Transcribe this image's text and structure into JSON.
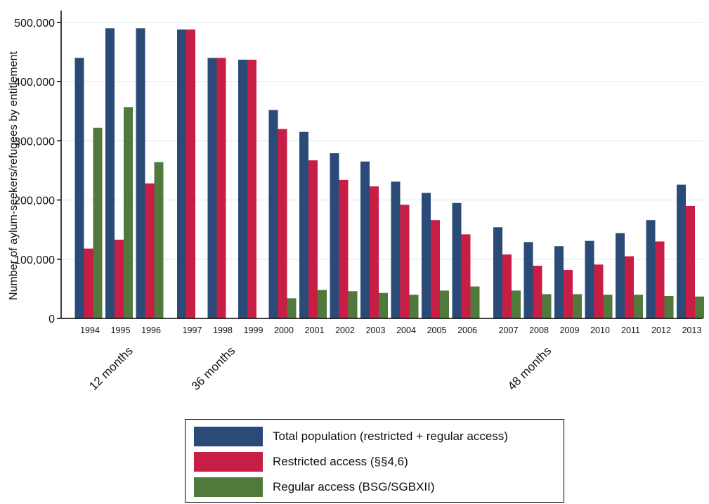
{
  "chart_data": {
    "type": "bar",
    "title": "",
    "xlabel": "",
    "ylabel": "Number of aylum-seekers/refugees by entitlement",
    "ylim": [
      0,
      520000
    ],
    "yticks": [
      0,
      100000,
      200000,
      300000,
      400000,
      500000
    ],
    "ytick_labels": [
      "0",
      "100,000",
      "200,000",
      "300,000",
      "400,000",
      "500,000"
    ],
    "grid": true,
    "legend_position": "bottom",
    "categories": [
      "1994",
      "1995",
      "1996",
      "1997",
      "1998",
      "1999",
      "2000",
      "2001",
      "2002",
      "2003",
      "2004",
      "2005",
      "2006",
      "2007",
      "2008",
      "2009",
      "2010",
      "2011",
      "2012",
      "2013"
    ],
    "groups": [
      {
        "label": "12 months",
        "categories": [
          "1994",
          "1995",
          "1996"
        ]
      },
      {
        "label": "36 months",
        "categories": [
          "1997",
          "1998",
          "1999",
          "2000",
          "2001",
          "2002",
          "2003",
          "2004",
          "2005",
          "2006"
        ]
      },
      {
        "label": "48 months",
        "categories": [
          "2007",
          "2008",
          "2009",
          "2010",
          "2011",
          "2012",
          "2013"
        ]
      }
    ],
    "series": [
      {
        "name": "Total population (restricted + regular access)",
        "color": "#2a4a78",
        "values": [
          440000,
          490000,
          490000,
          488000,
          440000,
          437000,
          352000,
          315000,
          279000,
          265000,
          231000,
          212000,
          195000,
          154000,
          129000,
          122000,
          131000,
          144000,
          166000,
          226000
        ]
      },
      {
        "name": "Restricted access (§§4,6)",
        "color": "#c81e45",
        "values": [
          118000,
          133000,
          228000,
          488000,
          440000,
          437000,
          320000,
          267000,
          234000,
          223000,
          192000,
          166000,
          142000,
          108000,
          89000,
          82000,
          91000,
          105000,
          130000,
          190000
        ]
      },
      {
        "name": "Regular access (BSG/SGBXII)",
        "color": "#4f7a3c",
        "values": [
          322000,
          357000,
          264000,
          0,
          0,
          0,
          34000,
          48000,
          46000,
          43000,
          40000,
          47000,
          54000,
          47000,
          41000,
          41000,
          40000,
          40000,
          38000,
          37000
        ]
      }
    ]
  }
}
